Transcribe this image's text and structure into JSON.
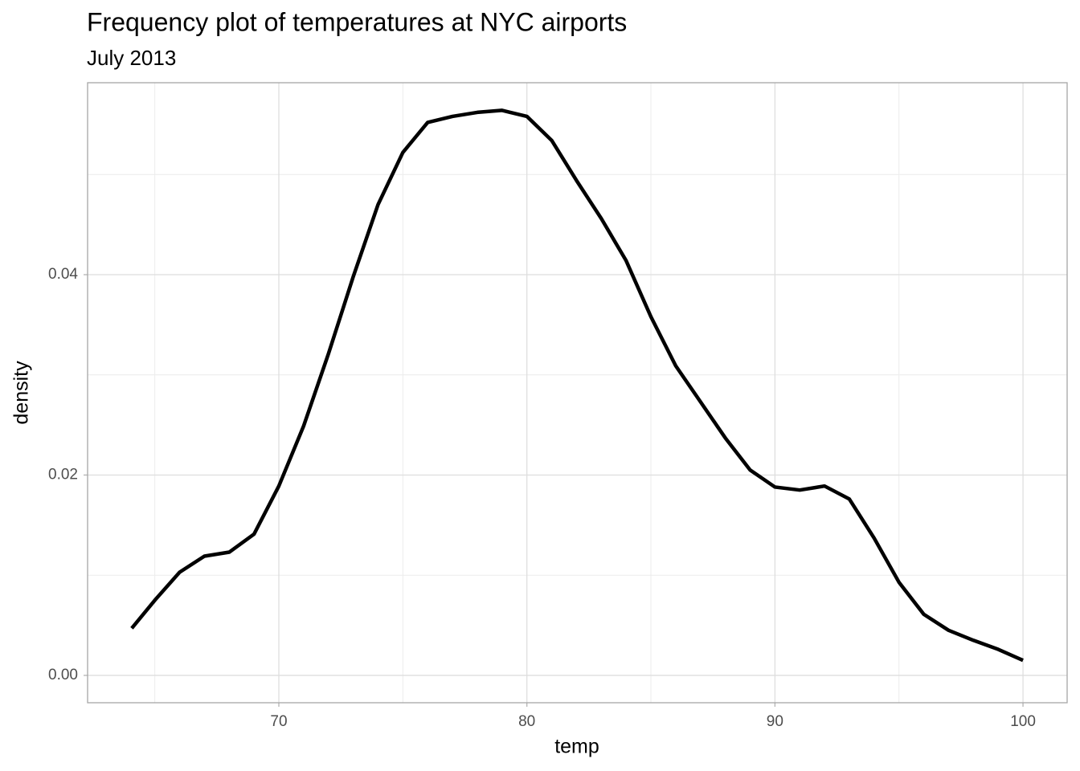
{
  "chart_data": {
    "type": "line",
    "title": "Frequency plot of temperatures at NYC airports",
    "subtitle": "July 2013",
    "x_label": "temp",
    "y_label": "density",
    "x": [
      64.07,
      65,
      66,
      67,
      68,
      69,
      70,
      71,
      72,
      73,
      74,
      75,
      76,
      77,
      78,
      79,
      80,
      81,
      82,
      83,
      84,
      85,
      86,
      87,
      88,
      89,
      90,
      91,
      92,
      93,
      94,
      95,
      96,
      97,
      98,
      99,
      100
    ],
    "series": [
      {
        "name": "density",
        "color": "#000000",
        "values": [
          0.0047,
          0.0075,
          0.0103,
          0.0119,
          0.0123,
          0.0141,
          0.0189,
          0.0249,
          0.0321,
          0.0398,
          0.047,
          0.0522,
          0.0552,
          0.0558,
          0.0562,
          0.0564,
          0.0558,
          0.0534,
          0.0494,
          0.0456,
          0.0414,
          0.0358,
          0.0309,
          0.0273,
          0.0237,
          0.0205,
          0.0188,
          0.0185,
          0.0189,
          0.0176,
          0.0137,
          0.0093,
          0.0061,
          0.0045,
          0.0035,
          0.0026,
          0.0015
        ]
      }
    ],
    "xlim": [
      62.29,
      101.78
    ],
    "ylim": [
      -0.00273,
      0.05916
    ],
    "xticks": [
      70,
      80,
      90,
      100
    ],
    "yticks": [
      {
        "value": 0,
        "label": "0.00"
      },
      {
        "value": 0.02,
        "label": "0.02"
      },
      {
        "value": 0.04,
        "label": "0.04"
      }
    ],
    "minor_xticks": [
      65,
      75,
      85,
      95
    ],
    "minor_yticks": [
      0.01,
      0.03,
      0.05
    ],
    "grid": true
  }
}
